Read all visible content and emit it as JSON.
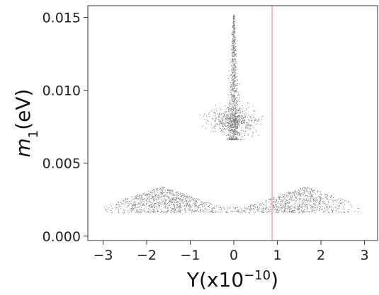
{
  "chart_data": {
    "type": "scatter",
    "title": "",
    "xlabel": {
      "base": "Y(x10",
      "sup": "−10",
      "tail": ")"
    },
    "ylabel": {
      "base": "m",
      "sub": "1",
      "tail": "(eV)"
    },
    "xlim": [
      -3.35,
      3.3
    ],
    "ylim": [
      -0.0003,
      0.0158
    ],
    "xticks": [
      {
        "value": -3,
        "label": "−3"
      },
      {
        "value": -2,
        "label": "−2"
      },
      {
        "value": -1,
        "label": "−1"
      },
      {
        "value": 0,
        "label": "0"
      },
      {
        "value": 1,
        "label": "1"
      },
      {
        "value": 2,
        "label": "2"
      },
      {
        "value": 3,
        "label": "3"
      }
    ],
    "yticks": [
      {
        "value": 0.0,
        "label": "0.000"
      },
      {
        "value": 0.005,
        "label": "0.005"
      },
      {
        "value": 0.01,
        "label": "0.010"
      },
      {
        "value": 0.015,
        "label": "0.015"
      }
    ],
    "grid": false,
    "legend": "none",
    "reference_line": {
      "orientation": "vertical",
      "x": 0.88,
      "color": "#f4b6b6"
    },
    "point_color": "#7a7a7a",
    "regions": [
      {
        "name": "lower band",
        "x_range": [
          -3.0,
          2.9
        ],
        "y_range": [
          0.0016,
          0.0034
        ],
        "density_peaks_x": [
          -1.7,
          1.6
        ],
        "approx_points": 1800
      },
      {
        "name": "central spike",
        "x_range": [
          -0.15,
          0.15
        ],
        "y_range": [
          0.0066,
          0.0152
        ],
        "approx_points": 900
      },
      {
        "name": "central cloud",
        "x_range": [
          -0.9,
          0.9
        ],
        "y_range": [
          0.0068,
          0.0092
        ],
        "approx_points": 500
      }
    ]
  }
}
